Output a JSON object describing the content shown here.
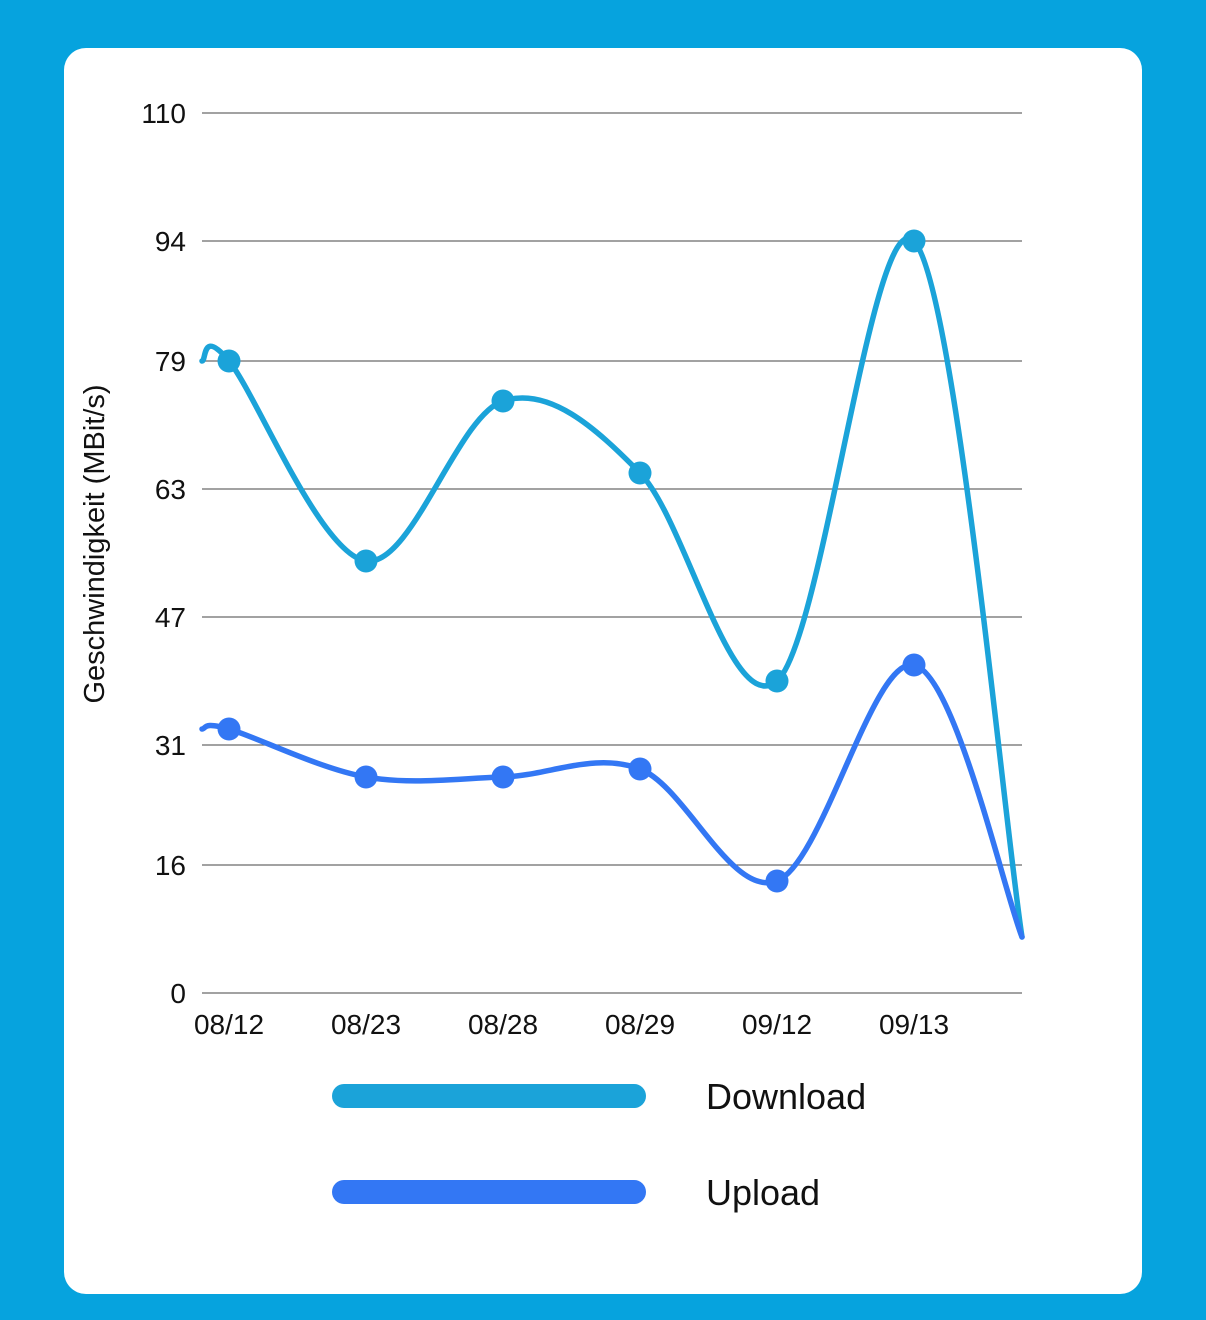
{
  "chart_data": {
    "type": "line",
    "ylabel": "Geschwindigkeit (MBit/s)",
    "xlabel": "",
    "ylim": [
      0,
      110
    ],
    "yticks": [
      "0",
      "16",
      "31",
      "47",
      "63",
      "79",
      "94",
      "110"
    ],
    "categories": [
      "08/12",
      "08/23",
      "08/28",
      "08/29",
      "09/12",
      "09/13"
    ],
    "series": [
      {
        "name": "Download",
        "color": "#1ba3d9",
        "values": [
          79,
          54,
          74,
          65,
          39,
          94
        ],
        "trailing_value": 7
      },
      {
        "name": "Upload",
        "color": "#3377f4",
        "values": [
          33,
          27,
          27,
          28,
          14,
          41
        ],
        "trailing_value": 7
      }
    ],
    "grid": true,
    "legend_position": "bottom",
    "curve": "smooth"
  }
}
